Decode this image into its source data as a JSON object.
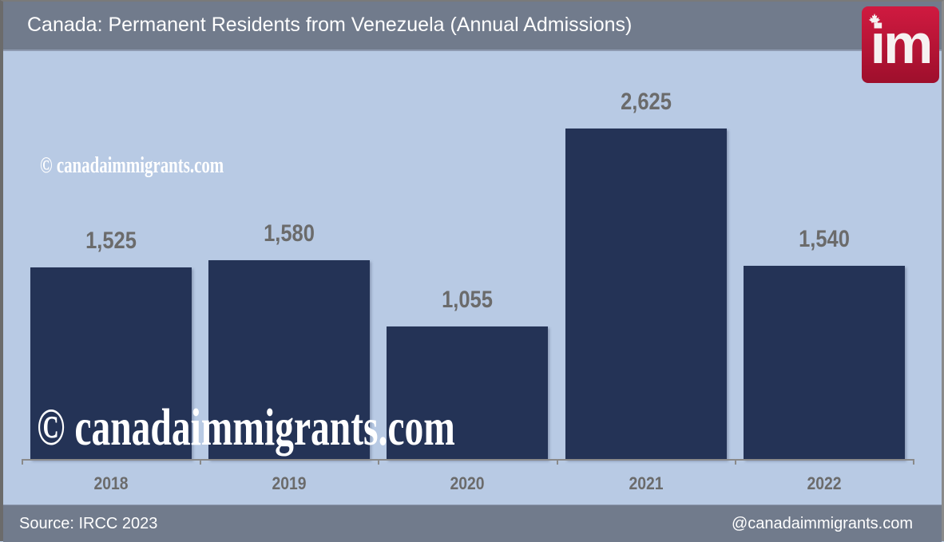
{
  "header": {
    "title": "Canada: Permanent Residents from Venezuela (Annual Admissions)",
    "logo_text": "im",
    "logo_icon": "maple-leaf-icon"
  },
  "watermarks": {
    "small": "© canadaimmigrants.com",
    "large": "© canadaimmigrants.com"
  },
  "footer": {
    "source": "Source: IRCC 2023",
    "handle": "@canadaimmigrants.com"
  },
  "colors": {
    "bar": "#243356",
    "plot_background": "#b8cae4",
    "header_footer": "#717b8c",
    "label_text": "#6b6b6b",
    "logo_red": "#c4143a"
  },
  "chart_data": {
    "type": "bar",
    "title": "Canada: Permanent Residents from Venezuela (Annual Admissions)",
    "xlabel": "",
    "ylabel": "",
    "categories": [
      "2018",
      "2019",
      "2020",
      "2021",
      "2022"
    ],
    "values": [
      1525,
      1580,
      1055,
      2625,
      1540
    ],
    "value_labels": [
      "1,525",
      "1,580",
      "1,055",
      "2,625",
      "1,540"
    ],
    "ylim": [
      0,
      2625
    ],
    "grid": false,
    "legend": null,
    "source": "Source: IRCC 2023"
  }
}
